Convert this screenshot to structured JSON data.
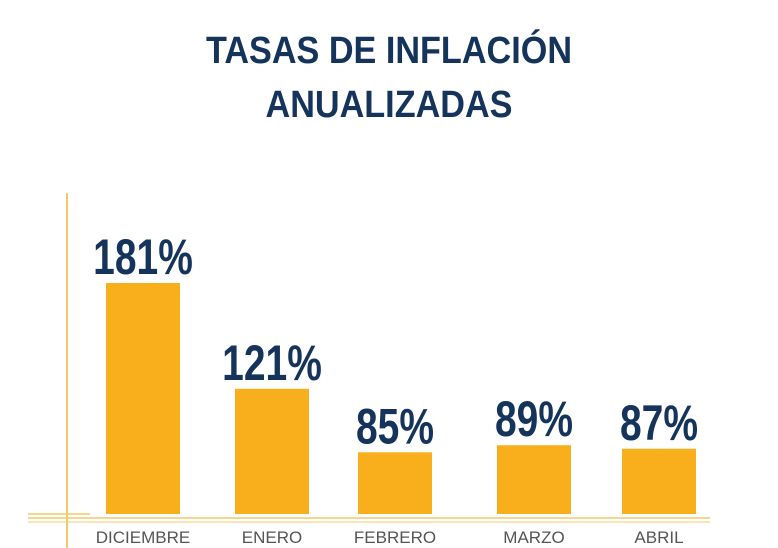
{
  "chart_data": {
    "type": "bar",
    "title": [
      "TASAS DE INFLACIÓN",
      "ANUALIZADAS"
    ],
    "categories": [
      "DICIEMBRE",
      "ENERO",
      "FEBRERO",
      "MARZO",
      "ABRIL"
    ],
    "values": [
      181,
      121,
      85,
      89,
      87
    ],
    "data_labels": [
      "181%",
      "121%",
      "85%",
      "89%",
      "87%"
    ],
    "xlabel": "",
    "ylabel": "",
    "ylim": [
      50,
      190
    ],
    "grid": false,
    "colors": {
      "bar": "#f9ae1b",
      "text": "#15345c",
      "axis": "#f2c96a"
    }
  }
}
